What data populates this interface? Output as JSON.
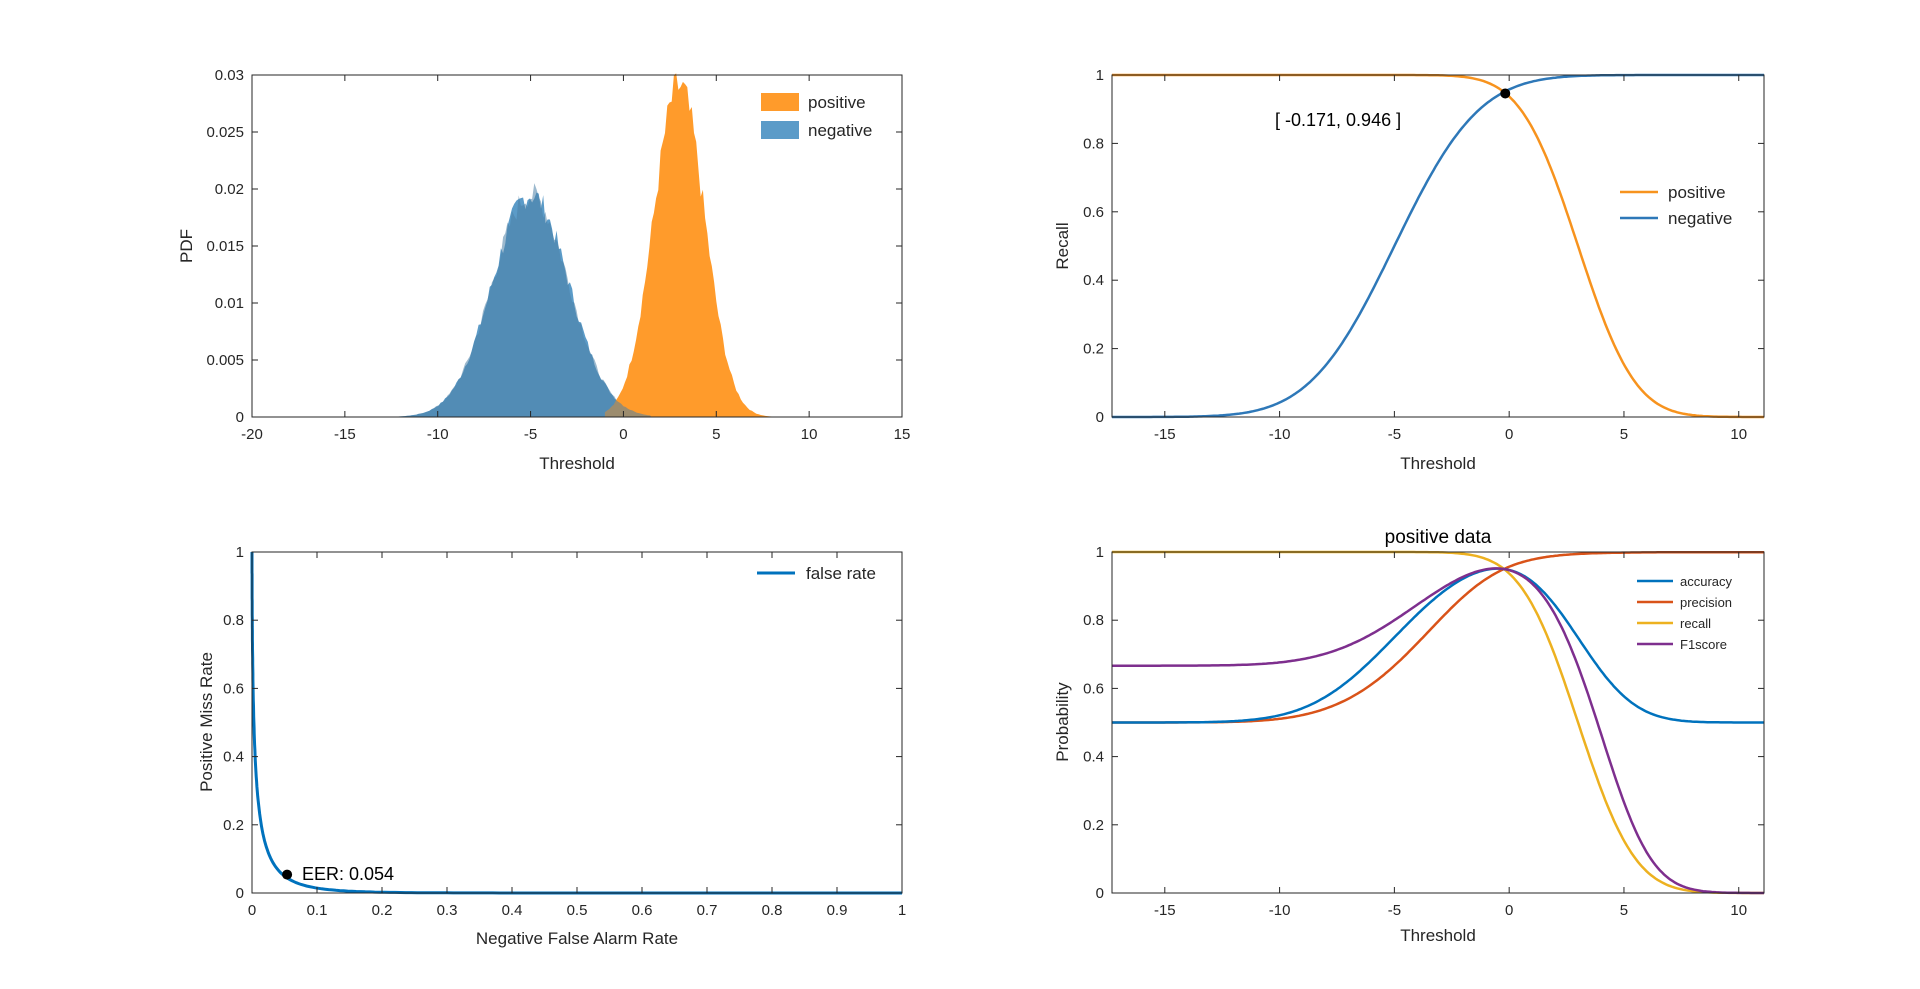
{
  "figure": {
    "colors": {
      "orange": "#f7931e",
      "blue": "#2e78b8",
      "hist_orange": "#ff9b2b",
      "hist_blue": "#5b9bc8",
      "red": "#d95319",
      "yellow": "#edb120",
      "purple": "#7e2f8e"
    }
  },
  "chart_data": [
    {
      "id": "pdf",
      "type": "area",
      "title": "",
      "xlabel": "Threshold",
      "ylabel": "PDF",
      "xlim": [
        -20,
        15
      ],
      "ylim": [
        0,
        0.03
      ],
      "xticks": [
        "-20",
        "-15",
        "-10",
        "-5",
        "0",
        "5",
        "10",
        "15"
      ],
      "yticks": [
        "0",
        "0.005",
        "0.01",
        "0.015",
        "0.02",
        "0.025",
        "0.03"
      ],
      "legend": {
        "position": "top-right",
        "entries": [
          "positive",
          "negative"
        ]
      },
      "series": [
        {
          "name": "negative",
          "distribution": "normal",
          "mean": -5,
          "std": 2.05,
          "peak": 0.0195,
          "support": [
            -15,
            1.5
          ]
        },
        {
          "name": "positive",
          "distribution": "normal",
          "mean": 3,
          "std": 1.38,
          "peak": 0.029,
          "support": [
            -1,
            9
          ]
        }
      ]
    },
    {
      "id": "recall",
      "type": "line",
      "title": "",
      "xlabel": "Threshold",
      "ylabel": "Recall",
      "xlim": [
        -17.3,
        11.1
      ],
      "ylim": [
        0,
        1
      ],
      "xticks": [
        "-15",
        "-10",
        "-5",
        "0",
        "5",
        "10"
      ],
      "yticks": [
        "0",
        "0.2",
        "0.4",
        "0.6",
        "0.8",
        "1"
      ],
      "legend": {
        "position": "middle-right",
        "entries": [
          "positive",
          "negative"
        ]
      },
      "series": [
        {
          "name": "positive",
          "model": "1 - normcdf(x; mean 3, std 1.96)"
        },
        {
          "name": "negative",
          "model": "normcdf(x; mean -5, std 2.9)"
        }
      ],
      "marker": {
        "x": -0.171,
        "y": 0.946
      },
      "annotation": "[ -0.171, 0.946 ]"
    },
    {
      "id": "det",
      "type": "line",
      "title": "",
      "xlabel": "Negative False Alarm Rate",
      "ylabel": "Positive Miss Rate",
      "xlim": [
        0,
        1
      ],
      "ylim": [
        0,
        1
      ],
      "xticks": [
        "0",
        "0.1",
        "0.2",
        "0.3",
        "0.4",
        "0.5",
        "0.6",
        "0.7",
        "0.8",
        "0.9",
        "1"
      ],
      "yticks": [
        "0",
        "0.2",
        "0.4",
        "0.6",
        "0.8",
        "1"
      ],
      "legend": {
        "position": "top-right",
        "entries": [
          "false rate"
        ]
      },
      "series": [
        {
          "name": "false rate",
          "model": "miss rate vs false alarm rate"
        }
      ],
      "marker": {
        "x": 0.054,
        "y": 0.054
      },
      "annotation": "EER: 0.054"
    },
    {
      "id": "metrics",
      "type": "line",
      "title": "positive data",
      "xlabel": "Threshold",
      "ylabel": "Probability",
      "xlim": [
        -17.3,
        11.1
      ],
      "ylim": [
        0,
        1
      ],
      "xticks": [
        "-15",
        "-10",
        "-5",
        "0",
        "5",
        "10"
      ],
      "yticks": [
        "0",
        "0.2",
        "0.4",
        "0.6",
        "0.8",
        "1"
      ],
      "legend": {
        "position": "top-right",
        "entries": [
          "accuracy",
          "precision",
          "recall",
          "F1score"
        ]
      },
      "series": [
        {
          "name": "accuracy",
          "range": [
            0.5,
            0.946,
            0.5
          ]
        },
        {
          "name": "precision",
          "range": [
            0.5,
            1.0
          ]
        },
        {
          "name": "recall",
          "range": [
            1.0,
            0.0
          ]
        },
        {
          "name": "F1score",
          "range": [
            0.667,
            0.946,
            0.0
          ]
        }
      ]
    }
  ]
}
